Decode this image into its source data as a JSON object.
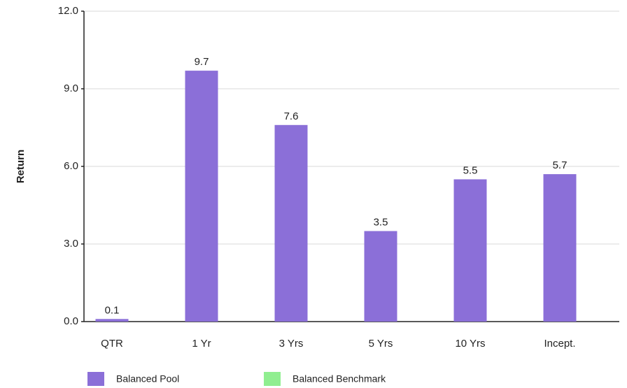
{
  "chart_data": {
    "type": "bar",
    "y_label": "Return",
    "categories": [
      "QTR",
      "1 Yr",
      "3 Yrs",
      "5 Yrs",
      "10 Yrs",
      "Incept."
    ],
    "series": [
      {
        "name": "Balanced Pool",
        "color": "#8b6fd8",
        "values": [
          0.1,
          9.7,
          7.6,
          3.5,
          5.5,
          5.7
        ]
      },
      {
        "name": "Balanced Benchmark",
        "color": "#90ee90",
        "values": [
          null,
          null,
          null,
          null,
          null,
          null
        ]
      }
    ],
    "ylim": [
      0,
      12
    ],
    "yticks": [
      {
        "value": 0,
        "label": "0.0"
      },
      {
        "value": 3,
        "label": "3.0"
      },
      {
        "value": 6,
        "label": "6.0"
      },
      {
        "value": 9,
        "label": "9.0"
      },
      {
        "value": 12,
        "label": "12.0"
      }
    ],
    "grid": true
  }
}
